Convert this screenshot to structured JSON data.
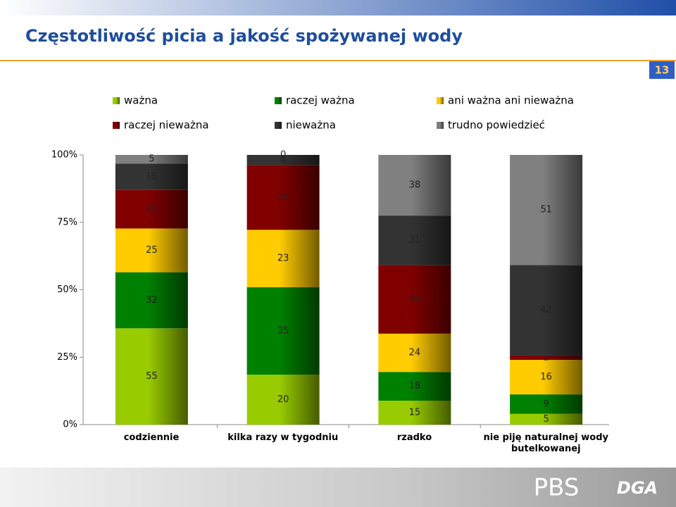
{
  "page_number": "13",
  "logo": {
    "brand": "PBS",
    "partner": "DGA"
  },
  "chart_data": {
    "type": "stacked-bar",
    "stacking": "percent",
    "title": "Częstotliwość picia a jakość spożywanej wody",
    "categories": [
      "codziennie",
      "kilka razy w tygodniu",
      "rzadko",
      "nie piję naturalnej wody butelkowanej"
    ],
    "series": [
      {
        "name": "ważna",
        "color": "#99cc00",
        "values": [
          55,
          20,
          15,
          5
        ]
      },
      {
        "name": "raczej ważna",
        "color": "#008000",
        "values": [
          32,
          35,
          18,
          9
        ]
      },
      {
        "name": "ani ważna ani nieważna",
        "color": "#ffcc00",
        "values": [
          25,
          23,
          24,
          16
        ]
      },
      {
        "name": "raczej nieważna",
        "color": "#800000",
        "values": [
          22,
          26,
          43,
          2
        ]
      },
      {
        "name": "nieważna",
        "color": "#333333",
        "values": [
          15,
          4,
          31,
          42
        ]
      },
      {
        "name": "trudno powiedzieć",
        "color": "#808080",
        "values": [
          5,
          0,
          38,
          51
        ]
      }
    ],
    "ylim": [
      0,
      100
    ],
    "yticks": [
      {
        "value": 0,
        "label": "0%"
      },
      {
        "value": 25,
        "label": "25%"
      },
      {
        "value": 50,
        "label": "50%"
      },
      {
        "value": 75,
        "label": "75%"
      },
      {
        "value": 100,
        "label": "100%"
      }
    ],
    "legend": "top"
  }
}
